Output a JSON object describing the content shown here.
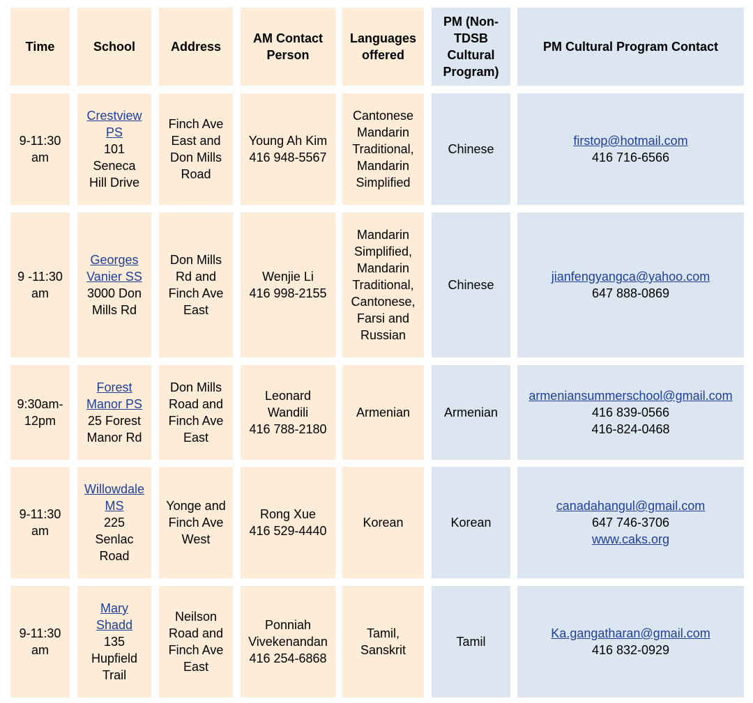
{
  "headers": {
    "time": "Time",
    "school": "School",
    "address": "Address",
    "am_contact": [
      "AM Contact",
      "Person"
    ],
    "languages": [
      "Languages",
      "offered"
    ],
    "pm_program": [
      "PM (Non-",
      "TDSB",
      "Cultural",
      "Program)"
    ],
    "pm_contact": "PM Cultural Program Contact"
  },
  "rows": [
    {
      "time": [
        "9-11:30",
        "am"
      ],
      "school_link": [
        "Crestview",
        "PS"
      ],
      "school_addr": [
        "101",
        "Seneca",
        "Hill Drive"
      ],
      "address": [
        "Finch Ave",
        "East and",
        "Don Mills",
        "Road"
      ],
      "am_contact": [
        "Young Ah Kim",
        "416 948-5567"
      ],
      "languages": [
        "Cantonese",
        "Mandarin",
        "Traditional,",
        "Mandarin",
        "Simplified"
      ],
      "pm_program": "Chinese",
      "pm_email": "firstop@hotmail.com",
      "pm_phones": [
        "416 716-6566"
      ]
    },
    {
      "time": [
        "9 -11:30",
        "am"
      ],
      "school_link": [
        "Georges",
        "Vanier SS"
      ],
      "school_addr": [
        "3000 Don",
        "Mills Rd"
      ],
      "address": [
        "Don Mills",
        "Rd and",
        "Finch Ave",
        "East"
      ],
      "am_contact": [
        "Wenjie Li",
        "416 998-2155"
      ],
      "languages": [
        "Mandarin",
        "Simplified,",
        "Mandarin",
        "Traditional,",
        "Cantonese,",
        "Farsi and",
        "Russian"
      ],
      "pm_program": "Chinese",
      "pm_email": "jianfengyangca@yahoo.com",
      "pm_phones": [
        "647 888-0869"
      ]
    },
    {
      "time": [
        "9:30am-",
        "12pm"
      ],
      "school_link": [
        "Forest",
        "Manor PS"
      ],
      "school_addr": [
        "25 Forest",
        "Manor Rd"
      ],
      "address": [
        "Don Mills",
        "Road and",
        "Finch Ave",
        "East"
      ],
      "am_contact": [
        "Leonard",
        "Wandili",
        "416 788-2180"
      ],
      "languages": [
        "Armenian"
      ],
      "pm_program": "Armenian",
      "pm_email": "armeniansummerschool@gmail.com",
      "pm_phones": [
        "416 839-0566",
        "416-824-0468"
      ]
    },
    {
      "time": [
        "9-11:30",
        "am"
      ],
      "school_link": [
        "Willowdale",
        "MS"
      ],
      "school_addr": [
        "225",
        "Senlac",
        "Road"
      ],
      "address": [
        "Yonge and",
        "Finch Ave",
        "West"
      ],
      "am_contact": [
        "Rong Xue",
        "416 529-4440"
      ],
      "languages": [
        "Korean"
      ],
      "pm_program": "Korean",
      "pm_email": "canadahangul@gmail.com",
      "pm_phones": [
        "647 746-3706"
      ],
      "pm_web": "www.caks.org"
    },
    {
      "time": [
        "9-11:30",
        "am"
      ],
      "school_link": [
        "Mary",
        "Shadd"
      ],
      "school_addr": [
        "135",
        "Hupfield",
        "Trail"
      ],
      "address": [
        "Neilson",
        "Road and",
        "Finch Ave",
        "East"
      ],
      "am_contact": [
        "Ponniah",
        "Vivekenandan",
        "416 254-6868"
      ],
      "languages": [
        "Tamil,",
        "Sanskrit"
      ],
      "pm_program": "Tamil",
      "pm_email": "Ka.gangatharan@gmail.com",
      "pm_phones": [
        "416 832-0929"
      ]
    }
  ],
  "colors": {
    "cream": "#fcecd8",
    "blue": "#dce6f1",
    "link": "#1f3f99"
  }
}
